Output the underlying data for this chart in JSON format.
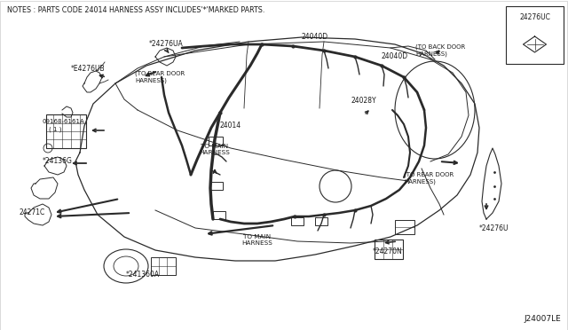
{
  "bg_color": "#ffffff",
  "line_color": "#2a2a2a",
  "text_color": "#1a1a1a",
  "note_text": "NOTES : PARTS CODE 24014 HARNESS ASSY INCLUDES'*'MARKED PARTS.",
  "diagram_code": "J24007LE",
  "inset_label": "24276UC",
  "figsize": [
    6.4,
    3.72
  ],
  "dpi": 100
}
